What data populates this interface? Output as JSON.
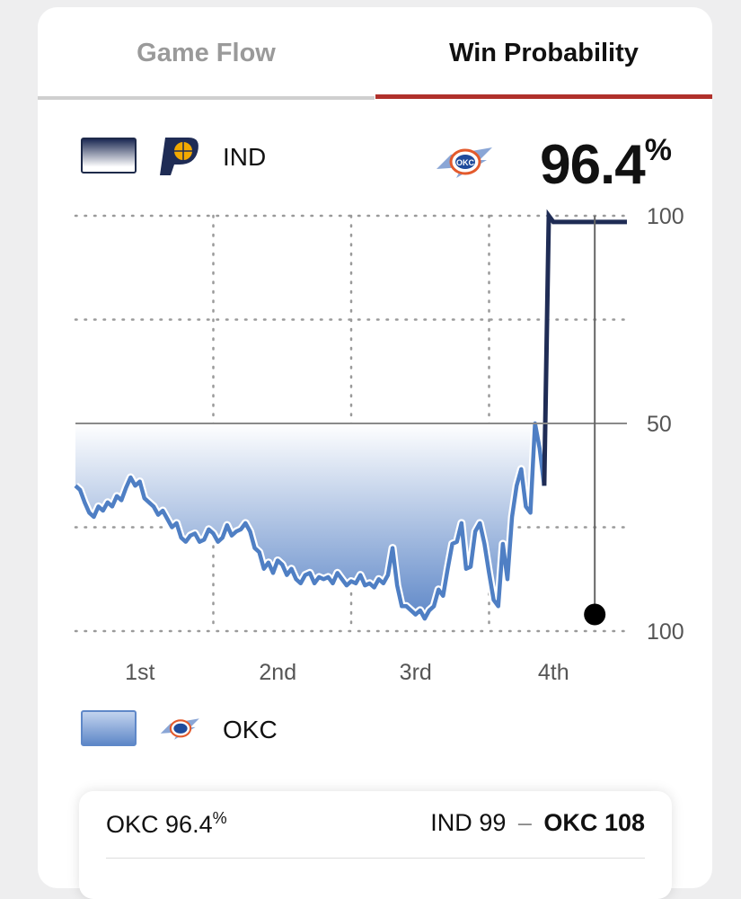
{
  "tabs": [
    {
      "label": "Game Flow",
      "active": false
    },
    {
      "label": "Win Probability",
      "active": true
    }
  ],
  "colors": {
    "ind": "#1f2c55",
    "okc": "#4f7fc4",
    "accent": "#b0302b"
  },
  "top_team": {
    "abbr": "IND",
    "logo": "pacers-logo-icon"
  },
  "bottom_team": {
    "abbr": "OKC",
    "logo": "thunder-logo-icon"
  },
  "leader": {
    "logo": "thunder-logo-icon",
    "pct": "96.4",
    "pct_symbol": "%"
  },
  "chart_data": {
    "type": "line",
    "y_tick_labels": [
      "100",
      "50",
      "100"
    ],
    "x_tick_labels": [
      "1st",
      "2nd",
      "3rd",
      "4th"
    ],
    "ylim": [
      -100,
      100
    ],
    "xlim": [
      0,
      48
    ],
    "grid": true,
    "series": [
      {
        "x": [
          0,
          0.4,
          0.8,
          1.2,
          1.6,
          2.0,
          2.4,
          2.8,
          3.2,
          3.6,
          4.0,
          4.4,
          4.8,
          5.2,
          5.6,
          6.0,
          6.4,
          6.8,
          7.2,
          7.6,
          8.0,
          8.4,
          8.8,
          9.2,
          9.6,
          10.0,
          10.4,
          10.8,
          11.2,
          11.6,
          12.0,
          12.4,
          12.8,
          13.2,
          13.6,
          14.0,
          14.4,
          14.8,
          15.2,
          15.6,
          16.0,
          16.4,
          16.8,
          17.2,
          17.6,
          18.0,
          18.4,
          18.8,
          19.2,
          19.6,
          20.0,
          20.4,
          20.8,
          21.2,
          21.6,
          22.0,
          22.4,
          22.8,
          23.2,
          23.6,
          24.0,
          24.4,
          24.8,
          25.2,
          25.6,
          26.0,
          26.4,
          26.8,
          27.2,
          27.6,
          28.0,
          28.4,
          28.8,
          29.2,
          29.6,
          30.0,
          30.4,
          30.8,
          31.2,
          31.6,
          32.0,
          32.4,
          32.8,
          33.2,
          33.6,
          34.0,
          34.4,
          34.8,
          35.2,
          35.6,
          36.0,
          36.4,
          36.8,
          37.2,
          37.6,
          38.0,
          38.4,
          38.8,
          39.2,
          39.6,
          40.0,
          40.4,
          40.8,
          41.2,
          41.6,
          42.0,
          42.4,
          42.8,
          43.2,
          43.6,
          44.0,
          44.4,
          44.8,
          45.2,
          45.6,
          46.0,
          46.4,
          46.8,
          47.2,
          47.4,
          47.6,
          47.8,
          47.9,
          48.0
        ],
        "values": [
          -30,
          -32,
          -38,
          -43,
          -45,
          -40,
          -42,
          -38,
          -40,
          -35,
          -37,
          -31,
          -26,
          -30,
          -28,
          -36,
          -38,
          -40,
          -44,
          -42,
          -46,
          -50,
          -48,
          -55,
          -57,
          -54,
          -53,
          -57,
          -56,
          -51,
          -53,
          -57,
          -55,
          -49,
          -54,
          -52,
          -51,
          -48,
          -52,
          -60,
          -62,
          -70,
          -67,
          -72,
          -66,
          -68,
          -73,
          -70,
          -75,
          -77,
          -73,
          -72,
          -77,
          -74,
          -75,
          -74,
          -77,
          -72,
          -75,
          -78,
          -76,
          -77,
          -73,
          -78,
          -77,
          -79,
          -75,
          -77,
          -73,
          -60,
          -78,
          -88,
          -88,
          -90,
          -92,
          -90,
          -94,
          -90,
          -88,
          -80,
          -83,
          -70,
          -58,
          -57,
          -48,
          -70,
          -69,
          -52,
          -48,
          -58,
          -72,
          -85,
          -88,
          -58,
          -75,
          -45,
          -30,
          -22,
          -40,
          -43,
          0,
          -12,
          -30,
          100,
          97,
          97,
          97,
          97,
          97,
          97,
          97,
          97,
          97,
          97,
          97,
          97,
          97,
          97,
          97,
          97,
          97,
          97,
          97,
          97
        ]
      }
    ]
  },
  "summary": {
    "left_team": "OKC",
    "left_pct": "96.4",
    "left_pct_symbol": "%",
    "away_team": "IND",
    "away_score": "99",
    "dash": "–",
    "home_team": "OKC",
    "home_score": "108"
  }
}
